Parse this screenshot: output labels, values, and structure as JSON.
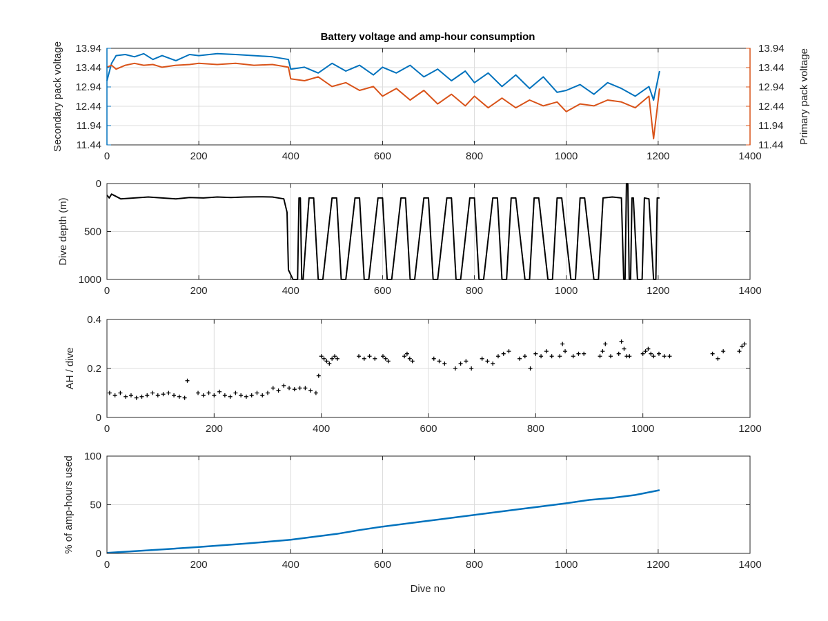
{
  "colors": {
    "secondary": "#0072BD",
    "primary": "#D95319",
    "data": "#000000",
    "used": "#0072BD",
    "axis": "#262626",
    "grid": "#dcdcdc"
  },
  "chart_data": [
    {
      "type": "line",
      "title": "Battery voltage and amp-hour consumption",
      "xlabel": "",
      "ylabel_left": "Secondary pack voltage",
      "ylabel_right": "Primary pack voltage",
      "xlim": [
        0,
        1400
      ],
      "ylim": [
        11.44,
        13.94
      ],
      "grid": true,
      "x_ticks": [
        "0",
        "200",
        "400",
        "600",
        "800",
        "1000",
        "1200",
        "1400"
      ],
      "y_ticks": [
        "11.44",
        "11.94",
        "12.44",
        "12.94",
        "13.44",
        "13.94"
      ],
      "series": [
        {
          "name": "Secondary pack voltage",
          "axis": "left",
          "x": [
            0,
            10,
            20,
            40,
            60,
            80,
            100,
            120,
            150,
            180,
            200,
            240,
            280,
            320,
            360,
            395,
            400,
            430,
            460,
            490,
            520,
            550,
            580,
            600,
            630,
            660,
            690,
            720,
            750,
            780,
            800,
            830,
            860,
            890,
            920,
            950,
            980,
            1000,
            1030,
            1060,
            1090,
            1120,
            1150,
            1180,
            1190,
            1203
          ],
          "values": [
            13.1,
            13.55,
            13.75,
            13.78,
            13.72,
            13.8,
            13.65,
            13.75,
            13.62,
            13.78,
            13.75,
            13.8,
            13.78,
            13.75,
            13.72,
            13.65,
            13.4,
            13.45,
            13.3,
            13.55,
            13.35,
            13.5,
            13.25,
            13.45,
            13.3,
            13.5,
            13.2,
            13.4,
            13.1,
            13.35,
            13.05,
            13.3,
            12.95,
            13.25,
            12.9,
            13.2,
            12.8,
            12.85,
            13.0,
            12.75,
            13.05,
            12.9,
            12.7,
            12.95,
            12.6,
            13.35
          ]
        },
        {
          "name": "Primary pack voltage",
          "axis": "right",
          "x": [
            0,
            10,
            20,
            40,
            60,
            80,
            100,
            120,
            150,
            180,
            200,
            240,
            280,
            320,
            360,
            395,
            400,
            430,
            460,
            490,
            520,
            550,
            580,
            600,
            630,
            660,
            690,
            720,
            750,
            780,
            800,
            830,
            860,
            890,
            920,
            950,
            980,
            1000,
            1030,
            1060,
            1090,
            1120,
            1150,
            1180,
            1190,
            1203
          ],
          "values": [
            13.45,
            13.5,
            13.4,
            13.5,
            13.55,
            13.5,
            13.52,
            13.45,
            13.5,
            13.52,
            13.55,
            13.52,
            13.55,
            13.5,
            13.52,
            13.45,
            13.15,
            13.1,
            13.2,
            12.95,
            13.05,
            12.85,
            12.95,
            12.7,
            12.9,
            12.6,
            12.85,
            12.5,
            12.75,
            12.45,
            12.7,
            12.4,
            12.65,
            12.4,
            12.6,
            12.45,
            12.55,
            12.3,
            12.5,
            12.45,
            12.6,
            12.55,
            12.4,
            12.7,
            11.6,
            12.9
          ]
        }
      ]
    },
    {
      "type": "line",
      "title": "",
      "xlabel": "",
      "ylabel": "Dive depth (m)",
      "xlim": [
        0,
        1400
      ],
      "ylim": [
        0,
        1000
      ],
      "y_reversed": true,
      "grid": true,
      "x_ticks": [
        "0",
        "200",
        "400",
        "600",
        "800",
        "1000",
        "1200",
        "1400"
      ],
      "y_ticks": [
        "0",
        "500",
        "1000"
      ],
      "series": [
        {
          "name": "",
          "x": [
            0,
            5,
            10,
            30,
            60,
            90,
            120,
            150,
            180,
            210,
            240,
            270,
            300,
            330,
            360,
            385,
            392,
            395,
            405,
            412,
            415,
            418,
            421,
            424,
            427,
            440,
            450,
            460,
            470,
            490,
            500,
            510,
            520,
            540,
            550,
            560,
            570,
            590,
            600,
            610,
            620,
            640,
            650,
            660,
            670,
            690,
            700,
            710,
            720,
            740,
            750,
            760,
            770,
            790,
            800,
            810,
            820,
            840,
            850,
            860,
            870,
            880,
            890,
            910,
            920,
            930,
            940,
            960,
            970,
            980,
            990,
            1010,
            1020,
            1030,
            1040,
            1060,
            1070,
            1080,
            1100,
            1120,
            1125,
            1128,
            1131,
            1134,
            1137,
            1140,
            1143,
            1146,
            1155,
            1165,
            1170,
            1180,
            1190,
            1195,
            1198,
            1201,
            1203
          ],
          "values": [
            120,
            150,
            110,
            160,
            150,
            140,
            150,
            160,
            145,
            150,
            140,
            145,
            140,
            138,
            140,
            160,
            300,
            900,
            1000,
            1000,
            1000,
            150,
            150,
            1000,
            1000,
            150,
            150,
            1000,
            1000,
            150,
            150,
            1000,
            1000,
            150,
            150,
            1000,
            1000,
            150,
            150,
            1000,
            1000,
            150,
            150,
            1000,
            1000,
            150,
            150,
            1000,
            1000,
            150,
            150,
            1000,
            1000,
            150,
            150,
            1000,
            1000,
            150,
            150,
            1000,
            1000,
            150,
            150,
            1000,
            1000,
            150,
            150,
            1000,
            1000,
            150,
            150,
            1000,
            1000,
            150,
            150,
            1000,
            1000,
            150,
            140,
            150,
            1000,
            1000,
            0,
            0,
            1000,
            1000,
            150,
            150,
            1000,
            1000,
            150,
            160,
            1000,
            1000,
            150,
            150,
            150
          ]
        }
      ]
    },
    {
      "type": "scatter",
      "title": "",
      "xlabel": "",
      "ylabel": "AH / dive",
      "xlim": [
        0,
        1200
      ],
      "ylim": [
        0,
        0.4
      ],
      "grid": true,
      "marker": "+",
      "x_ticks": [
        "0",
        "200",
        "400",
        "600",
        "800",
        "1000",
        "1200"
      ],
      "y_ticks": [
        "0",
        "0.2",
        "0.4"
      ],
      "series": [
        {
          "name": "",
          "x": [
            5,
            15,
            25,
            35,
            45,
            55,
            65,
            75,
            85,
            95,
            105,
            115,
            125,
            135,
            145,
            150,
            170,
            180,
            190,
            200,
            210,
            220,
            230,
            240,
            250,
            260,
            270,
            280,
            290,
            300,
            310,
            320,
            330,
            340,
            350,
            360,
            370,
            380,
            390,
            395,
            400,
            405,
            410,
            415,
            420,
            425,
            430,
            470,
            480,
            490,
            500,
            515,
            520,
            525,
            555,
            560,
            565,
            570,
            610,
            620,
            630,
            650,
            660,
            670,
            680,
            700,
            710,
            720,
            730,
            740,
            750,
            770,
            780,
            790,
            800,
            810,
            820,
            830,
            845,
            850,
            855,
            870,
            880,
            890,
            920,
            925,
            930,
            940,
            955,
            960,
            965,
            970,
            975,
            1000,
            1005,
            1010,
            1015,
            1020,
            1030,
            1040,
            1050,
            1130,
            1140,
            1150,
            1180,
            1185,
            1190
          ],
          "values": [
            0.1,
            0.09,
            0.1,
            0.085,
            0.09,
            0.08,
            0.085,
            0.09,
            0.1,
            0.09,
            0.095,
            0.1,
            0.09,
            0.085,
            0.08,
            0.15,
            0.1,
            0.09,
            0.1,
            0.09,
            0.105,
            0.09,
            0.085,
            0.1,
            0.09,
            0.085,
            0.09,
            0.1,
            0.09,
            0.1,
            0.12,
            0.11,
            0.13,
            0.12,
            0.115,
            0.12,
            0.12,
            0.11,
            0.1,
            0.17,
            0.25,
            0.24,
            0.23,
            0.22,
            0.24,
            0.25,
            0.24,
            0.25,
            0.24,
            0.25,
            0.24,
            0.25,
            0.24,
            0.23,
            0.25,
            0.26,
            0.24,
            0.23,
            0.24,
            0.23,
            0.22,
            0.2,
            0.22,
            0.23,
            0.2,
            0.24,
            0.23,
            0.22,
            0.25,
            0.26,
            0.27,
            0.24,
            0.25,
            0.2,
            0.26,
            0.25,
            0.27,
            0.25,
            0.25,
            0.3,
            0.27,
            0.25,
            0.26,
            0.26,
            0.25,
            0.27,
            0.3,
            0.25,
            0.26,
            0.31,
            0.28,
            0.25,
            0.25,
            0.26,
            0.27,
            0.28,
            0.26,
            0.25,
            0.26,
            0.25,
            0.25,
            0.26,
            0.24,
            0.27,
            0.27,
            0.29,
            0.3
          ]
        }
      ]
    },
    {
      "type": "line",
      "title": "",
      "xlabel": "Dive no",
      "ylabel": "% of amp-hours used",
      "xlim": [
        0,
        1400
      ],
      "ylim": [
        0,
        100
      ],
      "grid": true,
      "x_ticks": [
        "0",
        "200",
        "400",
        "600",
        "800",
        "1000",
        "1200",
        "1400"
      ],
      "y_ticks": [
        "0",
        "50",
        "100"
      ],
      "series": [
        {
          "name": "",
          "x": [
            0,
            100,
            200,
            300,
            400,
            500,
            550,
            600,
            700,
            800,
            900,
            1000,
            1050,
            1100,
            1150,
            1203
          ],
          "values": [
            0.5,
            3.5,
            6.5,
            10,
            14,
            20,
            24,
            27.5,
            33.5,
            39.5,
            45.5,
            51.5,
            55,
            57,
            60,
            65
          ]
        }
      ]
    }
  ]
}
